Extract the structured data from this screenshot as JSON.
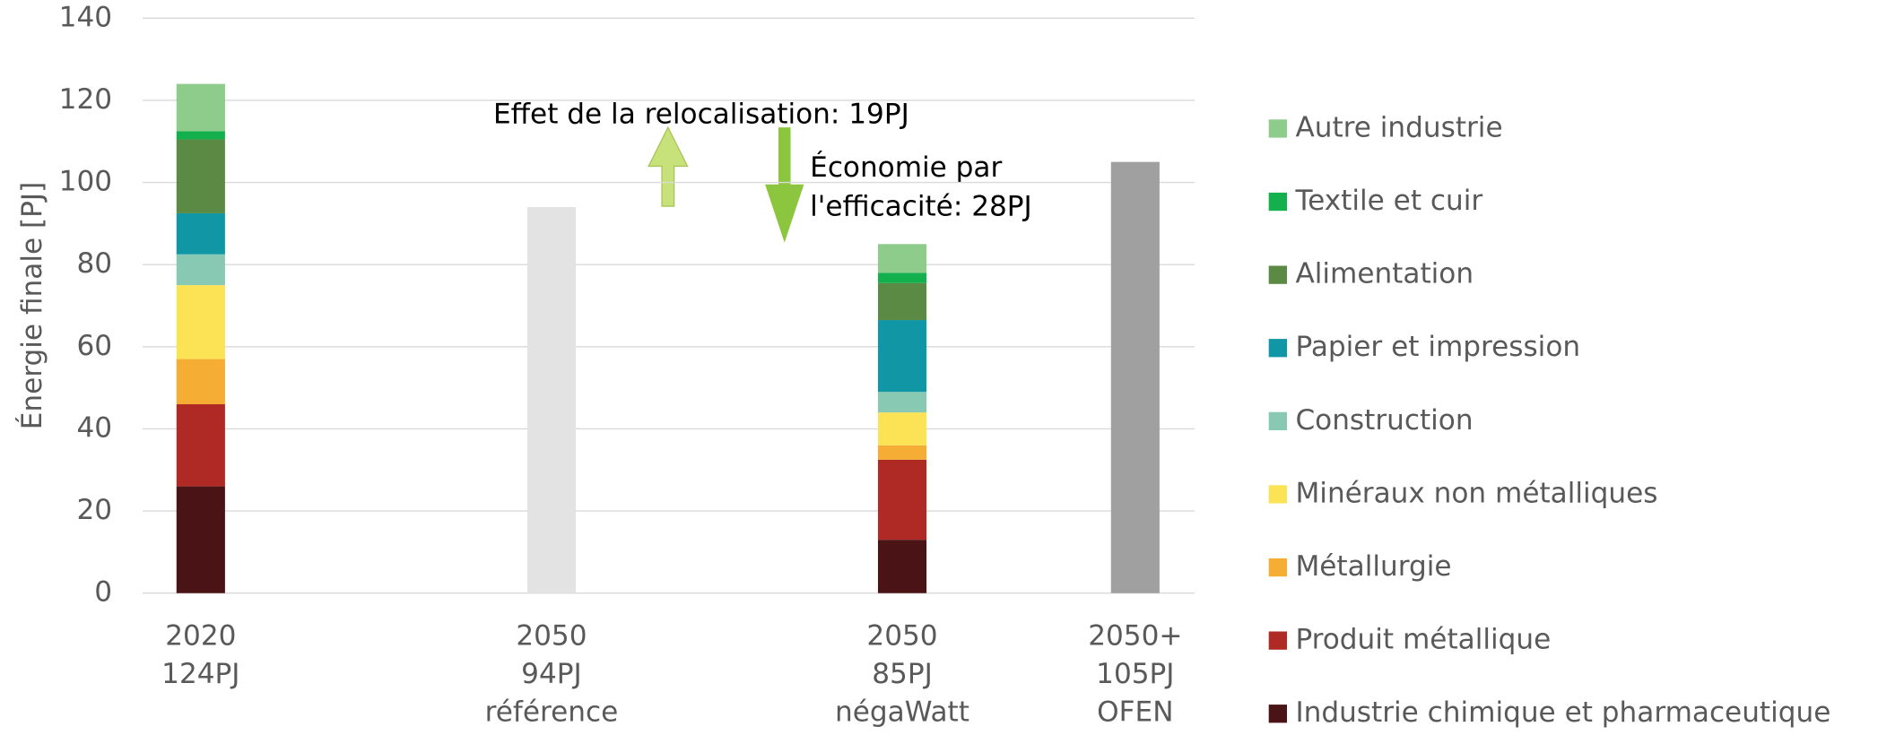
{
  "chart_data": {
    "type": "bar",
    "stacked": true,
    "ylabel": "Énergie finale [PJ]",
    "categories": [
      [
        "2020",
        "124PJ"
      ],
      [
        "2050",
        "94PJ",
        "référence"
      ],
      [
        "2050",
        "85PJ",
        "négaWatt"
      ],
      [
        "2050+",
        "105PJ",
        "OFEN"
      ]
    ],
    "series": [
      {
        "name": "Industrie chimique et pharmaceutique",
        "color": "#4a1416",
        "values": [
          26,
          null,
          13,
          null
        ]
      },
      {
        "name": "Produit métallique",
        "color": "#b02a25",
        "values": [
          20,
          null,
          19.5,
          null
        ]
      },
      {
        "name": "Métallurgie",
        "color": "#f5ad33",
        "values": [
          11,
          null,
          3.5,
          null
        ]
      },
      {
        "name": "Minéraux non métalliques",
        "color": "#fce356",
        "values": [
          18,
          null,
          8,
          null
        ]
      },
      {
        "name": "Construction",
        "color": "#88c9b3",
        "values": [
          7.5,
          null,
          5,
          null
        ]
      },
      {
        "name": "Papier et impression",
        "color": "#1196a6",
        "values": [
          10,
          null,
          17.5,
          null
        ]
      },
      {
        "name": "Alimentation",
        "color": "#5b8a44",
        "values": [
          18,
          null,
          9,
          null
        ]
      },
      {
        "name": "Textile et cuir",
        "color": "#14b04e",
        "values": [
          2,
          null,
          2.5,
          null
        ]
      },
      {
        "name": "Autre industrie",
        "color": "#8dcc8b",
        "values": [
          11.5,
          null,
          7,
          null
        ]
      },
      {
        "color": "#e3e3e3",
        "values": [
          null,
          94,
          null,
          null
        ]
      },
      {
        "color": "#a0a0a0",
        "values": [
          null,
          null,
          null,
          105
        ]
      }
    ],
    "ylim": [
      0,
      140
    ],
    "yticks": [
      0,
      20,
      40,
      60,
      80,
      100,
      120,
      140
    ],
    "grid": true,
    "annotations": [
      [
        "Effet de la relocalisation: 19PJ"
      ],
      [
        "Économie par",
        "l'efficacité: 28PJ"
      ]
    ]
  }
}
